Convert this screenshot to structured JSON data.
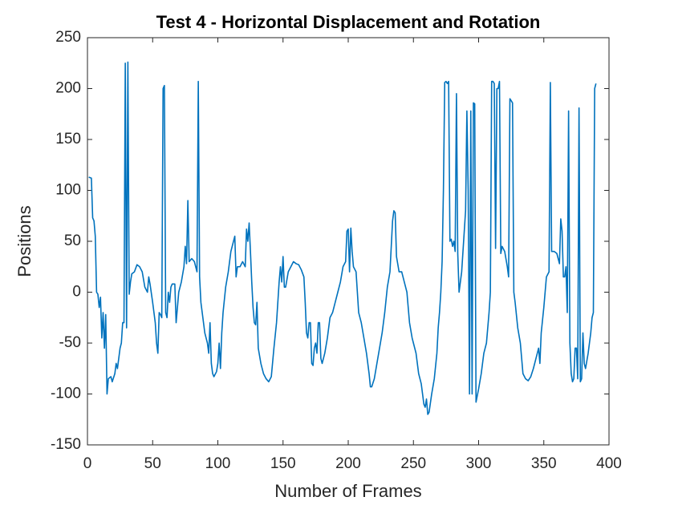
{
  "chart_data": {
    "type": "line",
    "title": "Test 4 - Horizontal Displacement and Rotation",
    "x_label": "Number of Frames",
    "y_label": "Positions",
    "xlim": [
      0,
      400
    ],
    "xticks": [
      0,
      50,
      100,
      150,
      200,
      250,
      300,
      350,
      400
    ],
    "ylim": [
      -150,
      250
    ],
    "yticks": [
      -150,
      -100,
      -50,
      0,
      50,
      100,
      150,
      200,
      250
    ],
    "series": [
      {
        "color": "#0072bd",
        "x": [
          1,
          3,
          4,
          5,
          6,
          7,
          8,
          9,
          10,
          11,
          12,
          13,
          14,
          15,
          16,
          18,
          19,
          21,
          22,
          23,
          25,
          26,
          27,
          28,
          29,
          30,
          31,
          32,
          33,
          34,
          36,
          38,
          40,
          42,
          44,
          46,
          47,
          48,
          50,
          52,
          53,
          54,
          55,
          56,
          57,
          58,
          59,
          60,
          61,
          62,
          63,
          64,
          65,
          67,
          68,
          69,
          70,
          72,
          74,
          75,
          76,
          77,
          78,
          80,
          82,
          84,
          85,
          86,
          87,
          88,
          90,
          92,
          93,
          94,
          95,
          96,
          97,
          99,
          100,
          101,
          102,
          103,
          104,
          106,
          108,
          110,
          112,
          113,
          114,
          115,
          117,
          119,
          121,
          122,
          123,
          124,
          125,
          126,
          127,
          128,
          129,
          130,
          131,
          133,
          135,
          137,
          139,
          141,
          143,
          145,
          147,
          148,
          149,
          150,
          151,
          152,
          154,
          156,
          158,
          160,
          162,
          164,
          166,
          167,
          168,
          169,
          170,
          171,
          172,
          173,
          174,
          175,
          176,
          177,
          178,
          179,
          180,
          182,
          184,
          186,
          188,
          190,
          192,
          194,
          196,
          198,
          199,
          200,
          201,
          202,
          203,
          204,
          206,
          207,
          208,
          210,
          212,
          214,
          216,
          217,
          218,
          220,
          222,
          224,
          226,
          228,
          230,
          232,
          234,
          235,
          236,
          237,
          239,
          241,
          243,
          245,
          247,
          249,
          250,
          252,
          254,
          256,
          257,
          258,
          259,
          260,
          261,
          262,
          264,
          266,
          268,
          269,
          270,
          271,
          272,
          273,
          274,
          275,
          276,
          277,
          278,
          279,
          280,
          281,
          282,
          283,
          284,
          285,
          287,
          288,
          290,
          291,
          292,
          293,
          294,
          295,
          296,
          297,
          298,
          300,
          302,
          304,
          306,
          308,
          309,
          310,
          311,
          312,
          313,
          314,
          315,
          316,
          317,
          318,
          320,
          322,
          323,
          324,
          325,
          326,
          327,
          328,
          330,
          332,
          333,
          334,
          336,
          338,
          340,
          342,
          344,
          346,
          347,
          348,
          350,
          352,
          354,
          355,
          356,
          358,
          360,
          362,
          363,
          364,
          365,
          366,
          367,
          368,
          369,
          370,
          371,
          372,
          373,
          374,
          375,
          376,
          377,
          378,
          379,
          380,
          381,
          382,
          384,
          386,
          387,
          388,
          389,
          390
        ],
        "values": [
          113,
          112,
          73,
          70,
          55,
          0,
          -2,
          -15,
          -5,
          -45,
          -20,
          -55,
          -22,
          -100,
          -85,
          -83,
          -88,
          -80,
          -70,
          -75,
          -55,
          -50,
          -30,
          -30,
          225,
          -35,
          226,
          -2,
          10,
          18,
          20,
          27,
          25,
          20,
          5,
          0,
          15,
          8,
          -10,
          -30,
          -50,
          -60,
          -20,
          -22,
          -25,
          200,
          203,
          -20,
          -25,
          0,
          -10,
          5,
          8,
          8,
          -30,
          -15,
          0,
          10,
          25,
          45,
          28,
          90,
          30,
          33,
          30,
          20,
          207,
          15,
          -10,
          -20,
          -40,
          -50,
          -60,
          -30,
          -70,
          -80,
          -83,
          -78,
          -70,
          -50,
          -75,
          -40,
          -20,
          5,
          20,
          40,
          50,
          55,
          15,
          25,
          25,
          30,
          25,
          62,
          50,
          68,
          40,
          10,
          -15,
          -30,
          -32,
          -10,
          -55,
          -70,
          -80,
          -85,
          -88,
          -83,
          -55,
          -30,
          10,
          25,
          10,
          35,
          5,
          5,
          20,
          25,
          30,
          28,
          27,
          22,
          15,
          -10,
          -40,
          -45,
          -30,
          -30,
          -70,
          -72,
          -55,
          -50,
          -60,
          -30,
          -30,
          -65,
          -70,
          -60,
          -45,
          -25,
          -20,
          -10,
          0,
          10,
          25,
          30,
          60,
          62,
          20,
          63,
          40,
          25,
          20,
          0,
          -20,
          -30,
          -45,
          -60,
          -80,
          -93,
          -93,
          -85,
          -70,
          -55,
          -40,
          -20,
          5,
          20,
          70,
          80,
          78,
          35,
          20,
          20,
          10,
          0,
          -30,
          -45,
          -50,
          -60,
          -80,
          -90,
          -100,
          -110,
          -113,
          -105,
          -120,
          -118,
          -100,
          -85,
          -60,
          -35,
          -20,
          0,
          30,
          100,
          206,
          207,
          205,
          207,
          50,
          52,
          45,
          50,
          40,
          195,
          38,
          0,
          20,
          40,
          80,
          178,
          100,
          -100,
          178,
          -100,
          186,
          185,
          -108,
          -95,
          -80,
          -60,
          -50,
          -20,
          0,
          207,
          207,
          205,
          43,
          200,
          200,
          207,
          38,
          45,
          40,
          25,
          15,
          190,
          188,
          186,
          0,
          -10,
          -35,
          -50,
          -65,
          -80,
          -85,
          -87,
          -83,
          -75,
          -65,
          -55,
          -70,
          -40,
          -15,
          15,
          20,
          206,
          40,
          40,
          38,
          28,
          72,
          60,
          15,
          15,
          25,
          -20,
          178,
          -50,
          -80,
          -88,
          -85,
          -55,
          -55,
          -85,
          181,
          -88,
          -85,
          -40,
          -70,
          -75,
          -60,
          -40,
          -25,
          -20,
          200,
          205
        ]
      }
    ]
  }
}
